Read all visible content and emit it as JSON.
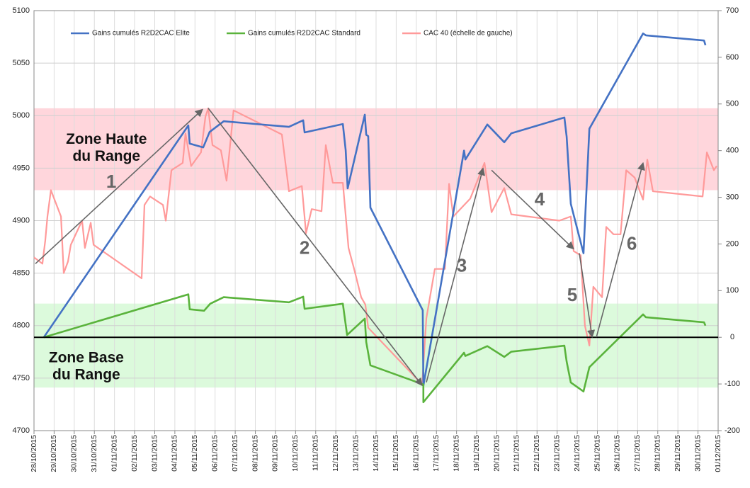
{
  "chart_data": {
    "type": "line",
    "xlim": [
      0,
      34
    ],
    "xticks": [
      {
        "value": 0,
        "label": "28/10/2015"
      },
      {
        "value": 1,
        "label": "29/10/2015"
      },
      {
        "value": 2,
        "label": "30/10/2015"
      },
      {
        "value": 3,
        "label": "31/10/2015"
      },
      {
        "value": 4,
        "label": "01/11/2015"
      },
      {
        "value": 5,
        "label": "02/11/2015"
      },
      {
        "value": 6,
        "label": "03/11/2015"
      },
      {
        "value": 7,
        "label": "04/11/2015"
      },
      {
        "value": 8,
        "label": "05/11/2015"
      },
      {
        "value": 9,
        "label": "06/11/2015"
      },
      {
        "value": 10,
        "label": "07/11/2015"
      },
      {
        "value": 11,
        "label": "08/11/2015"
      },
      {
        "value": 12,
        "label": "09/11/2015"
      },
      {
        "value": 13,
        "label": "10/11/2015"
      },
      {
        "value": 14,
        "label": "11/11/2015"
      },
      {
        "value": 15,
        "label": "12/11/2015"
      },
      {
        "value": 16,
        "label": "13/11/2015"
      },
      {
        "value": 17,
        "label": "14/11/2015"
      },
      {
        "value": 18,
        "label": "15/11/2015"
      },
      {
        "value": 19,
        "label": "16/11/2015"
      },
      {
        "value": 20,
        "label": "17/11/2015"
      },
      {
        "value": 21,
        "label": "18/11/2015"
      },
      {
        "value": 22,
        "label": "19/11/2015"
      },
      {
        "value": 23,
        "label": "20/11/2015"
      },
      {
        "value": 24,
        "label": "21/11/2015"
      },
      {
        "value": 25,
        "label": "22/11/2015"
      },
      {
        "value": 26,
        "label": "23/11/2015"
      },
      {
        "value": 27,
        "label": "24/11/2015"
      },
      {
        "value": 28,
        "label": "25/11/2015"
      },
      {
        "value": 29,
        "label": "26/11/2015"
      },
      {
        "value": 30,
        "label": "27/11/2015"
      },
      {
        "value": 31,
        "label": "28/11/2015"
      },
      {
        "value": 32,
        "label": "29/11/2015"
      },
      {
        "value": 33,
        "label": "30/11/2015"
      },
      {
        "value": 34,
        "label": "01/12/2015"
      }
    ],
    "ylim": [
      4700,
      5100
    ],
    "yticks": [
      4700,
      4750,
      4800,
      4850,
      4900,
      4950,
      5000,
      5050,
      5100
    ],
    "y2lim": [
      -200,
      700
    ],
    "y2ticks": [
      -200,
      -100,
      0,
      100,
      200,
      300,
      400,
      500,
      600,
      700
    ],
    "grid": true,
    "legend": "top",
    "series": [
      {
        "name": "Gains cumulés R2D2CAC Elite",
        "color": "#4472c4",
        "axis": "y2",
        "x": [
          0.49,
          7.67,
          7.74,
          8.41,
          8.73,
          9.43,
          12.67,
          13.38,
          13.45,
          15.35,
          15.49,
          15.59,
          16.44,
          16.51,
          16.61,
          16.72,
          19.32,
          19.35,
          21.37,
          21.44,
          22.53,
          23.37,
          23.72,
          26.36,
          26.47,
          26.68,
          27.31,
          27.6,
          30.27,
          30.41,
          33.3,
          33.37
        ],
        "values": [
          0,
          454,
          415,
          407,
          440,
          463,
          451,
          465,
          439,
          457,
          401,
          319,
          477,
          434,
          431,
          278,
          58,
          -104,
          400,
          381,
          456,
          418,
          437,
          471,
          430,
          286,
          180,
          447,
          651,
          647,
          636,
          626
        ]
      },
      {
        "name": "Gains cumulés R2D2CAC Standard",
        "color": "#5ab33c",
        "axis": "y2",
        "x": [
          0.49,
          7.67,
          7.74,
          8.45,
          8.76,
          9.43,
          12.67,
          13.38,
          13.45,
          15.35,
          15.56,
          16.44,
          16.51,
          16.72,
          19.35,
          19.35,
          21.37,
          21.44,
          22.53,
          23.37,
          23.72,
          26.36,
          26.47,
          26.68,
          27.31,
          27.6,
          30.27,
          30.41,
          33.3,
          33.37
        ],
        "values": [
          0,
          92,
          60,
          57,
          72,
          86,
          75,
          87,
          61,
          72,
          5,
          40,
          -10,
          -60,
          -101,
          -139,
          -33,
          -40,
          -19,
          -42,
          -31,
          -18,
          -52,
          -97,
          -116,
          -64,
          49,
          43,
          32,
          25
        ]
      },
      {
        "name": "CAC 40 (échelle de gauche)",
        "color": "#ff9a9a",
        "axis": "y",
        "x": [
          0,
          0.42,
          0.56,
          0.67,
          0.84,
          1.34,
          1.48,
          1.69,
          1.83,
          2.39,
          2.53,
          2.82,
          2.96,
          5.35,
          5.49,
          5.77,
          6.41,
          6.55,
          6.83,
          7.39,
          7.53,
          7.81,
          8.3,
          8.52,
          8.66,
          8.87,
          9.29,
          9.57,
          9.92,
          12.32,
          12.67,
          13.31,
          13.52,
          13.8,
          14.29,
          14.5,
          14.85,
          15.35,
          15.63,
          15.91,
          16.26,
          16.47,
          16.61,
          19.29,
          19.5,
          19.92,
          20.42,
          20.63,
          20.84,
          21.68,
          22.39,
          22.74,
          23.37,
          23.72,
          26.11,
          26.68,
          26.82,
          27.17,
          27.38,
          27.6,
          27.8,
          28.23,
          28.44,
          28.8,
          29.15,
          29.43,
          29.85,
          30.27,
          30.48,
          30.76,
          33.23,
          33.44,
          33.79,
          33.93
        ],
        "values": [
          4865,
          4859,
          4881,
          4904,
          4929,
          4904,
          4850,
          4861,
          4877,
          4900,
          4874,
          4898,
          4877,
          4845,
          4915,
          4923,
          4915,
          4900,
          4948,
          4955,
          4983,
          4952,
          4965,
          4999,
          5007,
          4972,
          4967,
          4938,
          5005,
          4982,
          4928,
          4933,
          4888,
          4911,
          4909,
          4972,
          4936,
          4936,
          4874,
          4854,
          4827,
          4820,
          4798,
          4744,
          4807,
          4854,
          4854,
          4935,
          4904,
          4921,
          4955,
          4908,
          4931,
          4906,
          4900,
          4904,
          4871,
          4867,
          4800,
          4781,
          4837,
          4827,
          4894,
          4887,
          4887,
          4948,
          4941,
          4920,
          4958,
          4928,
          4923,
          4965,
          4948,
          4952
        ]
      }
    ],
    "zones": [
      {
        "label_lines": [
          "Zone Haute",
          "du Range"
        ],
        "color": "#ffd6dc",
        "from": 4929,
        "to": 5007,
        "label_x": 3.6,
        "label_y": 4977
      },
      {
        "label_lines": [
          "Zone Base",
          "du Range"
        ],
        "color": "#dcfadc",
        "from": 4741,
        "to": 4821,
        "label_x": 2.6,
        "label_y": 4769
      }
    ],
    "reference_line": {
      "axis": "y2",
      "value": 0,
      "color": "#000000"
    },
    "arrows": [
      {
        "label": "1",
        "from": [
          0.07,
          4859
        ],
        "to": [
          8.38,
          5006
        ],
        "label_at": [
          3.84,
          4936
        ]
      },
      {
        "label": "2",
        "from": [
          8.66,
          5007
        ],
        "to": [
          19.29,
          4743
        ],
        "label_at": [
          13.45,
          4873
        ]
      },
      {
        "label": "3",
        "from": [
          19.5,
          4746
        ],
        "to": [
          22.32,
          4950
        ],
        "label_at": [
          21.26,
          4856
        ]
      },
      {
        "label": "4",
        "from": [
          22.74,
          4948
        ],
        "to": [
          26.82,
          4873
        ],
        "label_at": [
          25.13,
          4919
        ]
      },
      {
        "label": "5",
        "from": [
          27.1,
          4869
        ],
        "to": [
          27.74,
          4789
        ],
        "label_at": [
          26.75,
          4828
        ]
      },
      {
        "label": "6",
        "from": [
          27.95,
          4789
        ],
        "to": [
          30.27,
          4955
        ],
        "label_at": [
          29.71,
          4877
        ]
      }
    ]
  }
}
